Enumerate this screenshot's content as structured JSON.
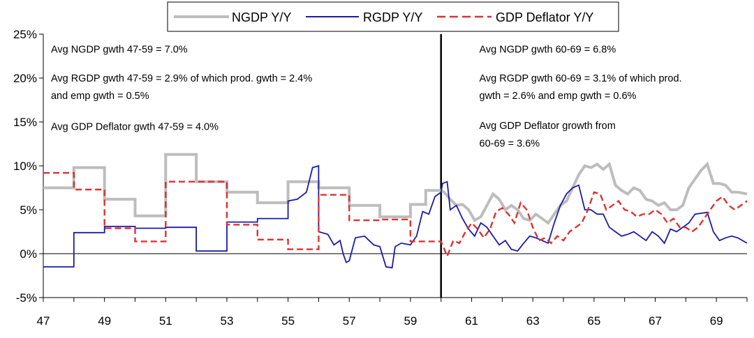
{
  "chart_data": {
    "type": "line",
    "title": "",
    "xlabel": "",
    "ylabel": "",
    "x_tick_labels": [
      "47",
      "49",
      "51",
      "53",
      "55",
      "57",
      "59",
      "61",
      "63",
      "65",
      "67",
      "69"
    ],
    "y_tick_labels": [
      "25%",
      "20%",
      "15%",
      "10%",
      "5%",
      "0%",
      "-5%"
    ],
    "ylim": [
      -5,
      25
    ],
    "xlim": [
      1947,
      1970
    ],
    "grid": false,
    "legend_position": "top-center",
    "divider_year": 1960,
    "series": [
      {
        "name": "NGDP Y/Y",
        "color": "#bdbdbd",
        "style": "solid",
        "points": [
          [
            1947.0,
            7.5
          ],
          [
            1948.0,
            7.5
          ],
          [
            1948.0,
            9.8
          ],
          [
            1949.0,
            9.8
          ],
          [
            1949.0,
            6.2
          ],
          [
            1950.0,
            6.2
          ],
          [
            1950.0,
            4.3
          ],
          [
            1951.0,
            4.3
          ],
          [
            1951.0,
            11.3
          ],
          [
            1952.0,
            11.3
          ],
          [
            1952.0,
            8.2
          ],
          [
            1953.0,
            8.2
          ],
          [
            1953.0,
            7.0
          ],
          [
            1954.0,
            7.0
          ],
          [
            1954.0,
            5.8
          ],
          [
            1955.0,
            5.8
          ],
          [
            1955.0,
            8.2
          ],
          [
            1956.0,
            8.2
          ],
          [
            1956.0,
            7.5
          ],
          [
            1957.0,
            7.5
          ],
          [
            1957.0,
            5.5
          ],
          [
            1958.0,
            5.5
          ],
          [
            1958.0,
            4.2
          ],
          [
            1959.0,
            4.2
          ],
          [
            1959.0,
            5.6
          ],
          [
            1959.5,
            5.6
          ],
          [
            1959.5,
            7.2
          ],
          [
            1960.0,
            7.2
          ],
          [
            1960.1,
            7.0
          ],
          [
            1960.3,
            6.2
          ],
          [
            1960.5,
            5.5
          ],
          [
            1960.7,
            5.6
          ],
          [
            1960.9,
            5.0
          ],
          [
            1961.1,
            3.8
          ],
          [
            1961.3,
            4.2
          ],
          [
            1961.5,
            5.5
          ],
          [
            1961.7,
            6.8
          ],
          [
            1961.9,
            6.2
          ],
          [
            1962.1,
            5.0
          ],
          [
            1962.3,
            5.5
          ],
          [
            1962.5,
            5.0
          ],
          [
            1962.7,
            4.0
          ],
          [
            1962.9,
            3.8
          ],
          [
            1963.1,
            4.5
          ],
          [
            1963.3,
            4.0
          ],
          [
            1963.5,
            3.5
          ],
          [
            1963.7,
            4.5
          ],
          [
            1963.9,
            5.5
          ],
          [
            1964.1,
            6.0
          ],
          [
            1964.3,
            7.5
          ],
          [
            1964.5,
            9.0
          ],
          [
            1964.7,
            10.0
          ],
          [
            1964.9,
            9.8
          ],
          [
            1965.1,
            10.2
          ],
          [
            1965.3,
            9.6
          ],
          [
            1965.5,
            10.2
          ],
          [
            1965.7,
            7.8
          ],
          [
            1965.9,
            7.2
          ],
          [
            1966.1,
            6.8
          ],
          [
            1966.3,
            7.5
          ],
          [
            1966.5,
            7.2
          ],
          [
            1966.7,
            6.2
          ],
          [
            1966.9,
            6.0
          ],
          [
            1967.1,
            5.5
          ],
          [
            1967.3,
            5.8
          ],
          [
            1967.5,
            5.0
          ],
          [
            1967.7,
            5.0
          ],
          [
            1967.9,
            5.5
          ],
          [
            1968.1,
            7.5
          ],
          [
            1968.3,
            8.5
          ],
          [
            1968.5,
            9.5
          ],
          [
            1968.7,
            10.2
          ],
          [
            1968.9,
            8.0
          ],
          [
            1969.1,
            8.0
          ],
          [
            1969.3,
            7.8
          ],
          [
            1969.5,
            7.0
          ],
          [
            1969.7,
            7.0
          ],
          [
            1970.0,
            6.8
          ]
        ]
      },
      {
        "name": "RGDP Y/Y",
        "color": "#1a1aa8",
        "style": "solid",
        "points": [
          [
            1947.0,
            -1.5
          ],
          [
            1948.0,
            -1.5
          ],
          [
            1948.0,
            2.4
          ],
          [
            1949.0,
            2.4
          ],
          [
            1949.0,
            3.1
          ],
          [
            1950.0,
            3.1
          ],
          [
            1950.0,
            2.9
          ],
          [
            1951.0,
            2.9
          ],
          [
            1951.0,
            3.0
          ],
          [
            1952.0,
            3.0
          ],
          [
            1952.0,
            0.3
          ],
          [
            1953.0,
            0.3
          ],
          [
            1953.0,
            3.6
          ],
          [
            1954.0,
            3.6
          ],
          [
            1954.0,
            4.0
          ],
          [
            1955.0,
            4.0
          ],
          [
            1955.0,
            6.0
          ],
          [
            1955.3,
            6.2
          ],
          [
            1955.6,
            7.0
          ],
          [
            1955.8,
            9.8
          ],
          [
            1956.0,
            10.0
          ],
          [
            1956.0,
            2.5
          ],
          [
            1956.3,
            2.2
          ],
          [
            1956.5,
            1.0
          ],
          [
            1956.7,
            1.5
          ],
          [
            1956.8,
            0.0
          ],
          [
            1956.9,
            -1.0
          ],
          [
            1957.0,
            -0.8
          ],
          [
            1957.2,
            1.8
          ],
          [
            1957.5,
            2.0
          ],
          [
            1957.8,
            1.0
          ],
          [
            1958.0,
            0.8
          ],
          [
            1958.2,
            -1.5
          ],
          [
            1958.4,
            -1.6
          ],
          [
            1958.5,
            0.8
          ],
          [
            1958.7,
            1.2
          ],
          [
            1959.0,
            1.0
          ],
          [
            1959.2,
            2.0
          ],
          [
            1959.4,
            4.8
          ],
          [
            1959.6,
            4.5
          ],
          [
            1959.8,
            6.5
          ],
          [
            1960.0,
            7.0
          ],
          [
            1960.05,
            8.0
          ],
          [
            1960.2,
            8.2
          ],
          [
            1960.3,
            5.0
          ],
          [
            1960.5,
            5.5
          ],
          [
            1960.7,
            4.0
          ],
          [
            1960.9,
            2.8
          ],
          [
            1961.1,
            2.0
          ],
          [
            1961.3,
            3.5
          ],
          [
            1961.5,
            3.0
          ],
          [
            1961.7,
            2.0
          ],
          [
            1961.9,
            1.0
          ],
          [
            1962.1,
            1.5
          ],
          [
            1962.3,
            0.5
          ],
          [
            1962.5,
            0.3
          ],
          [
            1962.7,
            1.2
          ],
          [
            1962.9,
            2.0
          ],
          [
            1963.1,
            1.8
          ],
          [
            1963.3,
            1.5
          ],
          [
            1963.5,
            1.2
          ],
          [
            1963.7,
            3.5
          ],
          [
            1963.9,
            5.5
          ],
          [
            1964.1,
            6.8
          ],
          [
            1964.3,
            7.5
          ],
          [
            1964.5,
            7.8
          ],
          [
            1964.7,
            5.0
          ],
          [
            1964.9,
            5.0
          ],
          [
            1965.1,
            4.5
          ],
          [
            1965.3,
            4.5
          ],
          [
            1965.5,
            3.0
          ],
          [
            1965.7,
            2.5
          ],
          [
            1965.9,
            2.0
          ],
          [
            1966.1,
            2.2
          ],
          [
            1966.3,
            2.5
          ],
          [
            1966.5,
            2.0
          ],
          [
            1966.7,
            1.5
          ],
          [
            1966.9,
            2.5
          ],
          [
            1967.1,
            2.0
          ],
          [
            1967.3,
            1.2
          ],
          [
            1967.5,
            2.8
          ],
          [
            1967.7,
            2.5
          ],
          [
            1967.9,
            3.0
          ],
          [
            1968.1,
            3.5
          ],
          [
            1968.3,
            4.5
          ],
          [
            1968.5,
            4.6
          ],
          [
            1968.7,
            4.7
          ],
          [
            1968.9,
            2.5
          ],
          [
            1969.1,
            1.5
          ],
          [
            1969.3,
            1.8
          ],
          [
            1969.5,
            2.0
          ],
          [
            1969.7,
            1.8
          ],
          [
            1970.0,
            1.2
          ]
        ]
      },
      {
        "name": "GDP Deflator Y/Y",
        "color": "#e03030",
        "style": "dashed",
        "points": [
          [
            1947.0,
            9.2
          ],
          [
            1948.0,
            9.2
          ],
          [
            1948.0,
            7.3
          ],
          [
            1949.0,
            7.3
          ],
          [
            1949.0,
            2.9
          ],
          [
            1950.0,
            2.9
          ],
          [
            1950.0,
            1.4
          ],
          [
            1951.0,
            1.4
          ],
          [
            1951.0,
            8.2
          ],
          [
            1953.0,
            8.2
          ],
          [
            1953.0,
            3.3
          ],
          [
            1954.0,
            3.3
          ],
          [
            1954.0,
            1.6
          ],
          [
            1955.0,
            1.6
          ],
          [
            1955.0,
            0.5
          ],
          [
            1956.0,
            0.5
          ],
          [
            1956.0,
            6.7
          ],
          [
            1957.0,
            6.7
          ],
          [
            1957.0,
            3.8
          ],
          [
            1958.0,
            3.8
          ],
          [
            1958.0,
            3.9
          ],
          [
            1959.0,
            3.9
          ],
          [
            1959.0,
            1.4
          ],
          [
            1960.0,
            1.4
          ],
          [
            1960.05,
            1.0
          ],
          [
            1960.2,
            -0.3
          ],
          [
            1960.4,
            1.5
          ],
          [
            1960.6,
            1.2
          ],
          [
            1960.8,
            2.5
          ],
          [
            1961.0,
            3.5
          ],
          [
            1961.2,
            2.8
          ],
          [
            1961.4,
            1.8
          ],
          [
            1961.6,
            2.8
          ],
          [
            1961.8,
            4.8
          ],
          [
            1962.0,
            5.2
          ],
          [
            1962.2,
            4.5
          ],
          [
            1962.4,
            3.5
          ],
          [
            1962.6,
            5.8
          ],
          [
            1962.8,
            5.0
          ],
          [
            1963.0,
            3.0
          ],
          [
            1963.2,
            1.5
          ],
          [
            1963.4,
            1.8
          ],
          [
            1963.6,
            1.2
          ],
          [
            1963.8,
            2.0
          ],
          [
            1964.0,
            1.5
          ],
          [
            1964.2,
            2.5
          ],
          [
            1964.4,
            3.0
          ],
          [
            1964.6,
            3.5
          ],
          [
            1964.8,
            5.0
          ],
          [
            1965.0,
            7.0
          ],
          [
            1965.2,
            6.8
          ],
          [
            1965.4,
            5.0
          ],
          [
            1965.6,
            5.5
          ],
          [
            1965.8,
            6.0
          ],
          [
            1966.0,
            5.0
          ],
          [
            1966.2,
            4.8
          ],
          [
            1966.4,
            4.2
          ],
          [
            1966.6,
            4.5
          ],
          [
            1966.8,
            4.5
          ],
          [
            1967.0,
            5.0
          ],
          [
            1967.2,
            4.5
          ],
          [
            1967.4,
            3.5
          ],
          [
            1967.6,
            4.0
          ],
          [
            1967.8,
            3.0
          ],
          [
            1968.0,
            3.0
          ],
          [
            1968.2,
            2.5
          ],
          [
            1968.4,
            3.0
          ],
          [
            1968.6,
            4.0
          ],
          [
            1968.8,
            5.0
          ],
          [
            1969.0,
            6.0
          ],
          [
            1969.2,
            6.5
          ],
          [
            1969.4,
            5.5
          ],
          [
            1969.6,
            5.0
          ],
          [
            1970.0,
            6.0
          ]
        ]
      }
    ],
    "annotations": [
      {
        "year": 1947.25,
        "value": 22.9,
        "text": "Avg NGDP gwth 47-59 = 7.0%"
      },
      {
        "year": 1947.25,
        "value": 19.6,
        "text": "Avg RGDP gwth 47-59 = 2.9% of which prod. gwth = 2.4%"
      },
      {
        "year": 1947.25,
        "value": 17.6,
        "text": "and emp gwth = 0.5%"
      },
      {
        "year": 1947.25,
        "value": 14.1,
        "text": "Avg GDP Deflator gwth 47-59 = 4.0%"
      },
      {
        "year": 1961.25,
        "value": 22.9,
        "text": "Avg NGDP gwth 60-69 = 6.8%"
      },
      {
        "year": 1961.25,
        "value": 19.6,
        "text": "Avg RGDP gwth 60-69 = 3.1% of which prod."
      },
      {
        "year": 1961.25,
        "value": 17.6,
        "text": "gwth = 2.6% and emp gwth = 0.6%"
      },
      {
        "year": 1961.25,
        "value": 14.2,
        "text": "Avg GDP Deflator growth from"
      },
      {
        "year": 1961.25,
        "value": 12.2,
        "text": "60-69 = 3.6%"
      }
    ]
  }
}
